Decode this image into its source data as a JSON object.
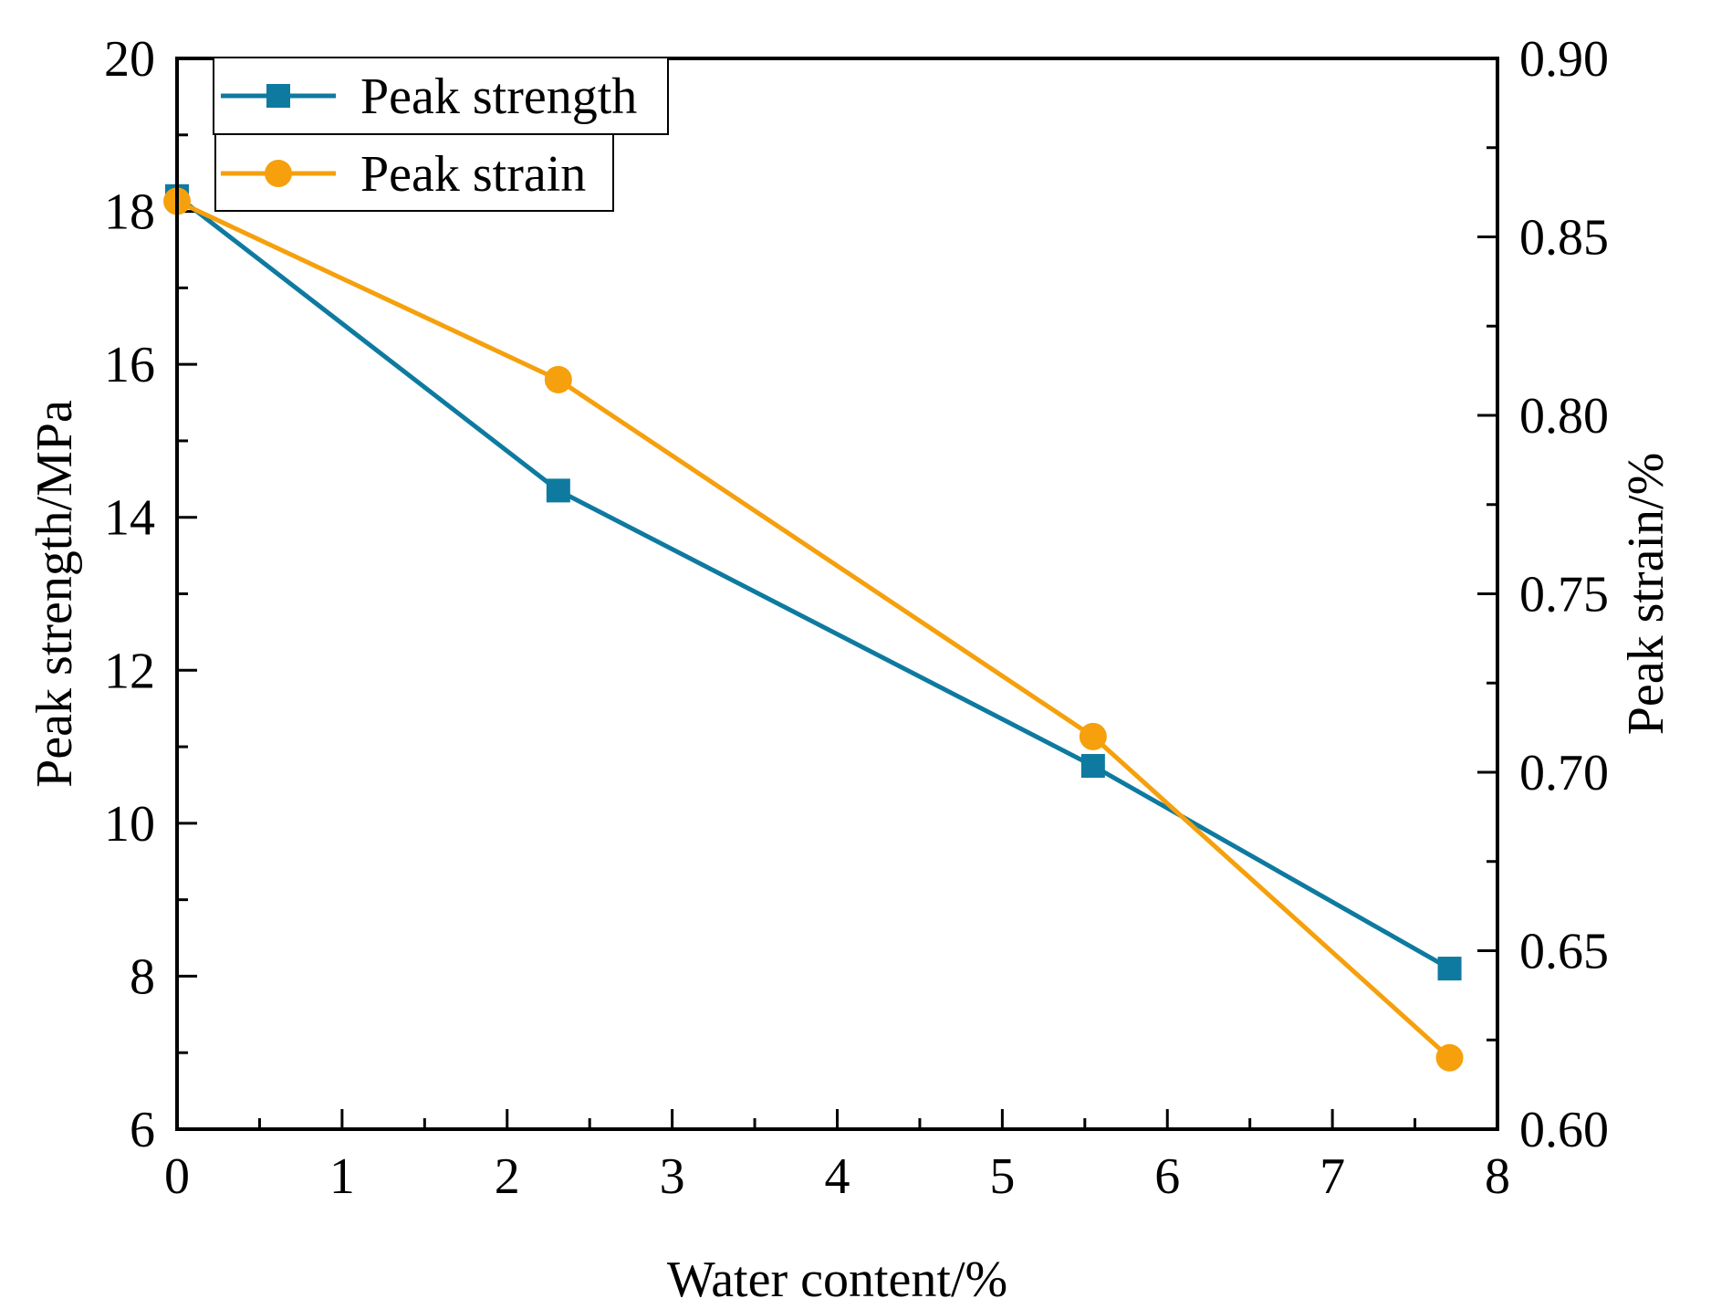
{
  "chart_data": {
    "type": "line",
    "xlabel": "Water content/%",
    "ylabel_left": "Peak strength/MPa",
    "ylabel_right": "Peak strain/%",
    "xlim": [
      0,
      8
    ],
    "ylim_left": [
      6,
      20
    ],
    "ylim_right": [
      0.6,
      0.9
    ],
    "x_ticks": [
      "0",
      "1",
      "2",
      "3",
      "4",
      "5",
      "6",
      "7",
      "8"
    ],
    "y_left_ticks": [
      "6",
      "8",
      "10",
      "12",
      "14",
      "16",
      "18",
      "20"
    ],
    "y_right_ticks": [
      "0.60",
      "0.65",
      "0.70",
      "0.75",
      "0.80",
      "0.85",
      "0.90"
    ],
    "legend_position": "top-left",
    "series": [
      {
        "name": "Peak strength",
        "axis": "left",
        "color": "#0e7aa0",
        "marker": "square",
        "x": [
          0,
          2.31,
          5.55,
          7.71
        ],
        "values": [
          18.2,
          14.35,
          10.75,
          8.1
        ]
      },
      {
        "name": "Peak strain",
        "axis": "right",
        "color": "#f5a00c",
        "marker": "circle",
        "x": [
          0,
          2.31,
          5.55,
          7.71
        ],
        "values": [
          0.86,
          0.81,
          0.71,
          0.62
        ]
      }
    ]
  }
}
